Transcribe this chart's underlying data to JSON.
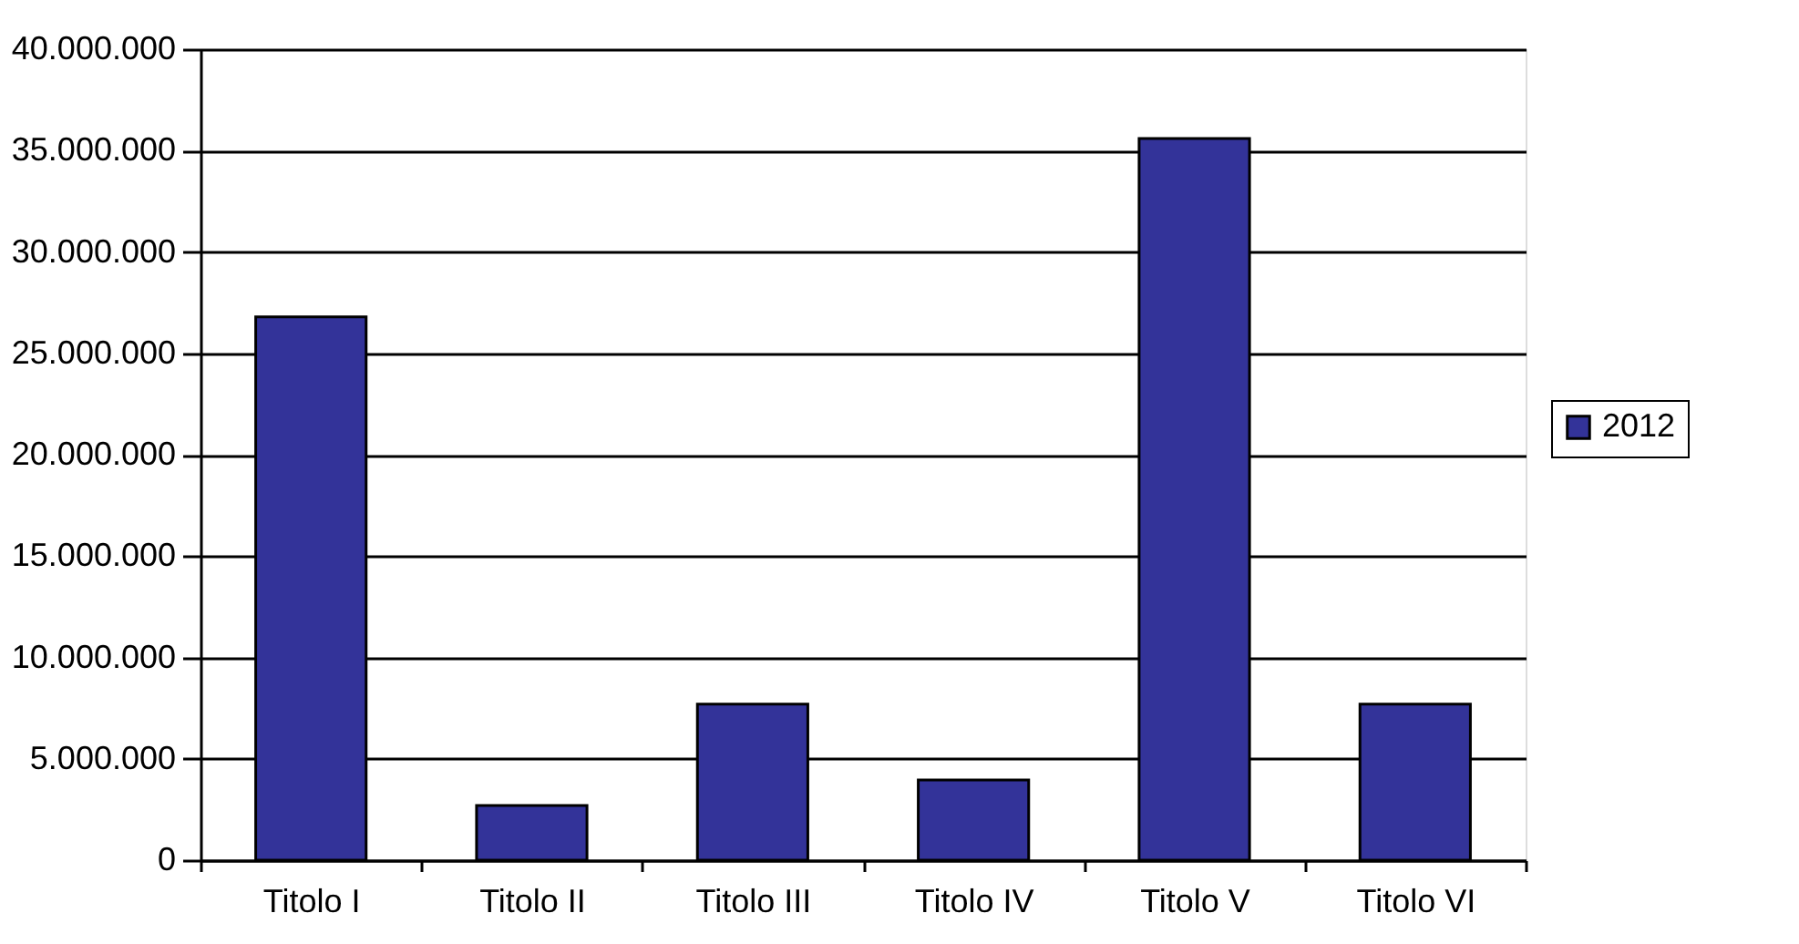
{
  "chart_data": {
    "type": "bar",
    "categories": [
      "Titolo I",
      "Titolo II",
      "Titolo III",
      "Titolo IV",
      "Titolo V",
      "Titolo VI"
    ],
    "series": [
      {
        "name": "2012",
        "color": "#333399",
        "values": [
          26800000,
          2700000,
          7700000,
          3950000,
          35600000,
          7700000
        ]
      }
    ],
    "ylim": [
      0,
      40000000
    ],
    "yticks": [
      {
        "value": 0,
        "label": "0"
      },
      {
        "value": 5000000,
        "label": "5.000.000"
      },
      {
        "value": 10000000,
        "label": "10.000.000"
      },
      {
        "value": 15000000,
        "label": "15.000.000"
      },
      {
        "value": 20000000,
        "label": "20.000.000"
      },
      {
        "value": 25000000,
        "label": "25.000.000"
      },
      {
        "value": 30000000,
        "label": "30.000.000"
      },
      {
        "value": 35000000,
        "label": "35.000.000"
      },
      {
        "value": 40000000,
        "label": "40.000.000"
      }
    ],
    "grid": "y",
    "legend": "right"
  }
}
